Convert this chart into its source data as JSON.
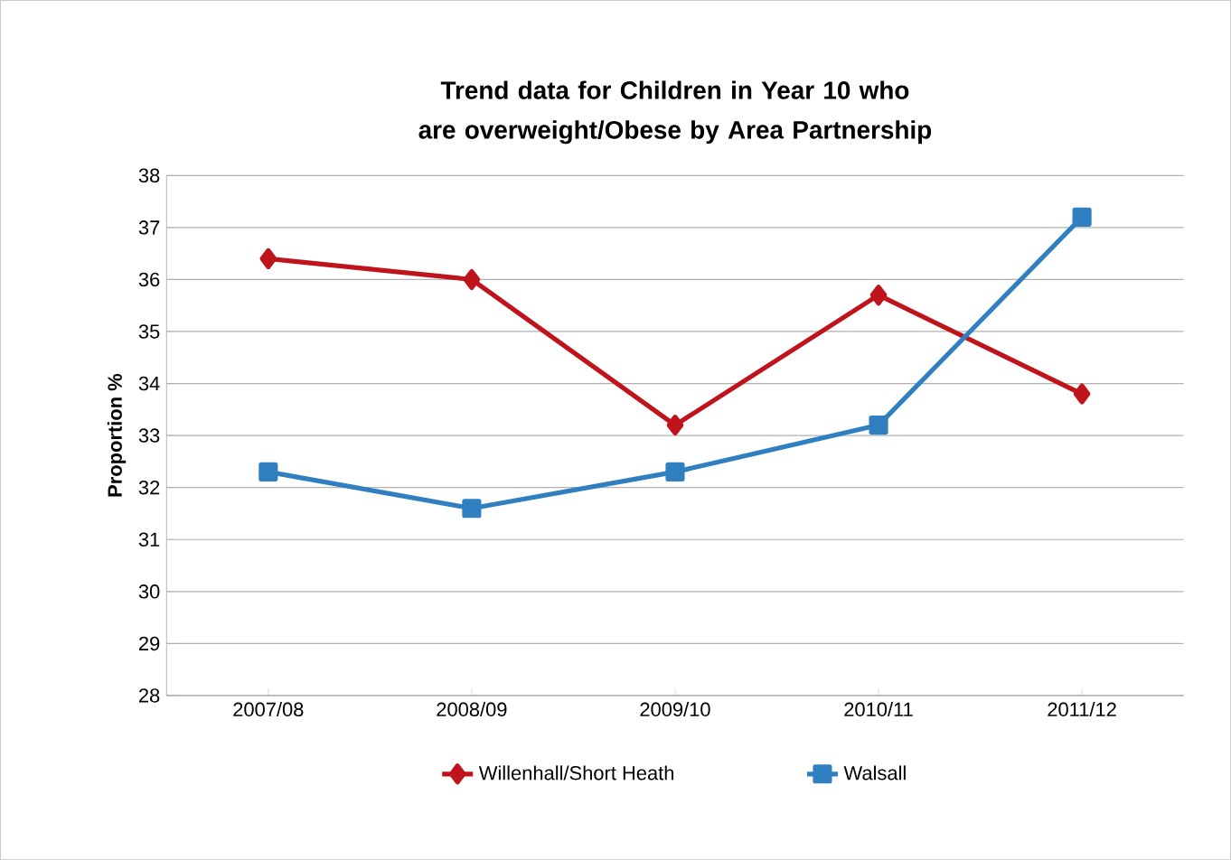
{
  "chart_data": {
    "type": "line",
    "title": "Trend data for Children in Year 10 who are overweight/Obese by Area Partnership",
    "ylabel": "Proportion %",
    "categories": [
      "2007/08",
      "2008/09",
      "2009/10",
      "2010/11",
      "2011/12"
    ],
    "series": [
      {
        "name": "Willenhall/Short Heath",
        "color": "#c0141c",
        "marker": "diamond",
        "values": [
          36.4,
          36.0,
          33.2,
          35.7,
          33.8
        ]
      },
      {
        "name": "Walsall",
        "color": "#2f7fc1",
        "marker": "square",
        "values": [
          32.3,
          31.6,
          32.3,
          33.2,
          37.2
        ]
      }
    ],
    "ylim": [
      28,
      38
    ],
    "yticks": [
      28,
      29,
      30,
      31,
      32,
      33,
      34,
      35,
      36,
      37,
      38
    ],
    "grid": "y",
    "legend": "bottom",
    "line_style": "solid"
  }
}
